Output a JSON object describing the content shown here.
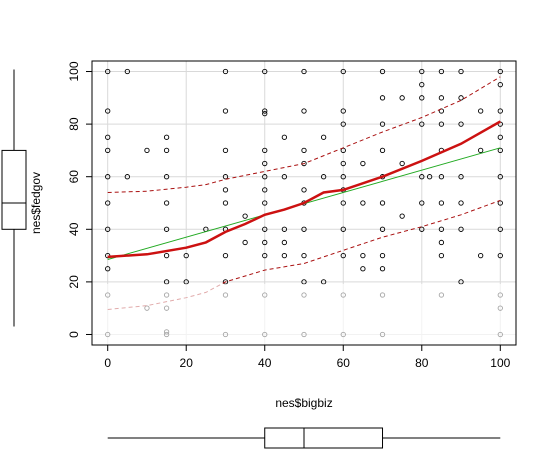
{
  "chart_data": {
    "type": "scatter",
    "title": "",
    "xlabel": "nes$bigbiz",
    "ylabel": "nes$fedgov",
    "xlim": [
      -4,
      104
    ],
    "ylim": [
      -4,
      104
    ],
    "xticks": [
      0,
      20,
      40,
      60,
      80,
      100
    ],
    "yticks": [
      0,
      20,
      40,
      60,
      80,
      100
    ],
    "grid": true,
    "colors": {
      "points": "#000000",
      "linear_fit": "#22aa22",
      "smooth": "#cc1111",
      "spread": "#aa1111",
      "grid": "#d9d9d9",
      "boxplot": "#000000",
      "fade": "#ffffff"
    },
    "points": [
      [
        0,
        100
      ],
      [
        5,
        100
      ],
      [
        30,
        100
      ],
      [
        40,
        100
      ],
      [
        50,
        100
      ],
      [
        60,
        100
      ],
      [
        70,
        100
      ],
      [
        80,
        100
      ],
      [
        85,
        100
      ],
      [
        90,
        100
      ],
      [
        100,
        100
      ],
      [
        80,
        95
      ],
      [
        100,
        95
      ],
      [
        70,
        90
      ],
      [
        75,
        90
      ],
      [
        80,
        90
      ],
      [
        85,
        90
      ],
      [
        90,
        90
      ],
      [
        0,
        85
      ],
      [
        30,
        85
      ],
      [
        40,
        85
      ],
      [
        50,
        85
      ],
      [
        60,
        85
      ],
      [
        85,
        85
      ],
      [
        95,
        85
      ],
      [
        100,
        85
      ],
      [
        40,
        84
      ],
      [
        60,
        80
      ],
      [
        70,
        80
      ],
      [
        80,
        80
      ],
      [
        85,
        80
      ],
      [
        90,
        80
      ],
      [
        100,
        80
      ],
      [
        0,
        75
      ],
      [
        15,
        75
      ],
      [
        45,
        75
      ],
      [
        55,
        75
      ],
      [
        100,
        75
      ],
      [
        0,
        70
      ],
      [
        10,
        70
      ],
      [
        15,
        70
      ],
      [
        30,
        70
      ],
      [
        40,
        70
      ],
      [
        50,
        70
      ],
      [
        60,
        70
      ],
      [
        70,
        70
      ],
      [
        85,
        70
      ],
      [
        95,
        70
      ],
      [
        100,
        70
      ],
      [
        40,
        65
      ],
      [
        50,
        65
      ],
      [
        60,
        65
      ],
      [
        65,
        65
      ],
      [
        75,
        65
      ],
      [
        0,
        60
      ],
      [
        5,
        60
      ],
      [
        15,
        60
      ],
      [
        30,
        60
      ],
      [
        40,
        60
      ],
      [
        45,
        60
      ],
      [
        55,
        60
      ],
      [
        60,
        60
      ],
      [
        70,
        60
      ],
      [
        80,
        60
      ],
      [
        82,
        60
      ],
      [
        85,
        60
      ],
      [
        90,
        60
      ],
      [
        100,
        60
      ],
      [
        30,
        55
      ],
      [
        40,
        55
      ],
      [
        50,
        55
      ],
      [
        60,
        55
      ],
      [
        0,
        50
      ],
      [
        15,
        50
      ],
      [
        30,
        50
      ],
      [
        40,
        50
      ],
      [
        50,
        50
      ],
      [
        60,
        50
      ],
      [
        65,
        50
      ],
      [
        70,
        50
      ],
      [
        80,
        50
      ],
      [
        85,
        50
      ],
      [
        90,
        50
      ],
      [
        100,
        50
      ],
      [
        35,
        45
      ],
      [
        75,
        45
      ],
      [
        0,
        40
      ],
      [
        15,
        40
      ],
      [
        25,
        40
      ],
      [
        30,
        40
      ],
      [
        40,
        40
      ],
      [
        45,
        40
      ],
      [
        50,
        40
      ],
      [
        60,
        40
      ],
      [
        70,
        40
      ],
      [
        80,
        40
      ],
      [
        85,
        40
      ],
      [
        90,
        40
      ],
      [
        100,
        40
      ],
      [
        35,
        35
      ],
      [
        40,
        35
      ],
      [
        45,
        35
      ],
      [
        85,
        35
      ],
      [
        0,
        30
      ],
      [
        15,
        30
      ],
      [
        20,
        30
      ],
      [
        30,
        30
      ],
      [
        40,
        30
      ],
      [
        45,
        30
      ],
      [
        50,
        30
      ],
      [
        60,
        30
      ],
      [
        65,
        30
      ],
      [
        70,
        30
      ],
      [
        85,
        30
      ],
      [
        95,
        30
      ],
      [
        100,
        30
      ],
      [
        0,
        25
      ],
      [
        65,
        25
      ],
      [
        70,
        25
      ],
      [
        15,
        20
      ],
      [
        20,
        20
      ],
      [
        30,
        20
      ],
      [
        50,
        20
      ],
      [
        55,
        20
      ],
      [
        90,
        20
      ],
      [
        0,
        15
      ],
      [
        15,
        15
      ],
      [
        30,
        15
      ],
      [
        40,
        15
      ],
      [
        50,
        15
      ],
      [
        60,
        15
      ],
      [
        70,
        15
      ],
      [
        85,
        15
      ],
      [
        100,
        15
      ],
      [
        10,
        10
      ],
      [
        15,
        10
      ],
      [
        100,
        10
      ],
      [
        15,
        1
      ],
      [
        15,
        0
      ],
      [
        0,
        0
      ],
      [
        30,
        0
      ],
      [
        40,
        0
      ],
      [
        50,
        0
      ],
      [
        60,
        0
      ],
      [
        70,
        0
      ],
      [
        100,
        0
      ]
    ],
    "linear_fit": [
      [
        0,
        28.5
      ],
      [
        100,
        71
      ]
    ],
    "smooth": [
      [
        0,
        29.5
      ],
      [
        10,
        30.5
      ],
      [
        20,
        33
      ],
      [
        25,
        35
      ],
      [
        30,
        39
      ],
      [
        35,
        42
      ],
      [
        40,
        45.5
      ],
      [
        45,
        47.5
      ],
      [
        50,
        50
      ],
      [
        55,
        54
      ],
      [
        60,
        55
      ],
      [
        70,
        60
      ],
      [
        80,
        66
      ],
      [
        90,
        72.5
      ],
      [
        100,
        81
      ]
    ],
    "spread_upper": [
      [
        0,
        54
      ],
      [
        10,
        54.5
      ],
      [
        20,
        56
      ],
      [
        25,
        57
      ],
      [
        30,
        59
      ],
      [
        40,
        62
      ],
      [
        50,
        65
      ],
      [
        60,
        71
      ],
      [
        70,
        77
      ],
      [
        80,
        82.5
      ],
      [
        90,
        89
      ],
      [
        100,
        98
      ]
    ],
    "spread_lower": [
      [
        0,
        9.5
      ],
      [
        10,
        11
      ],
      [
        20,
        14
      ],
      [
        25,
        16
      ],
      [
        30,
        20
      ],
      [
        40,
        24.5
      ],
      [
        50,
        27
      ],
      [
        60,
        32
      ],
      [
        70,
        37
      ],
      [
        80,
        41
      ],
      [
        90,
        45.5
      ],
      [
        100,
        51
      ]
    ],
    "boxplot_x": {
      "min": 0,
      "q1": 40,
      "median": 50,
      "q3": 70,
      "max": 100
    },
    "boxplot_y": {
      "min": 0,
      "q1": 40,
      "median": 50,
      "q3": 70,
      "max": 100
    }
  }
}
